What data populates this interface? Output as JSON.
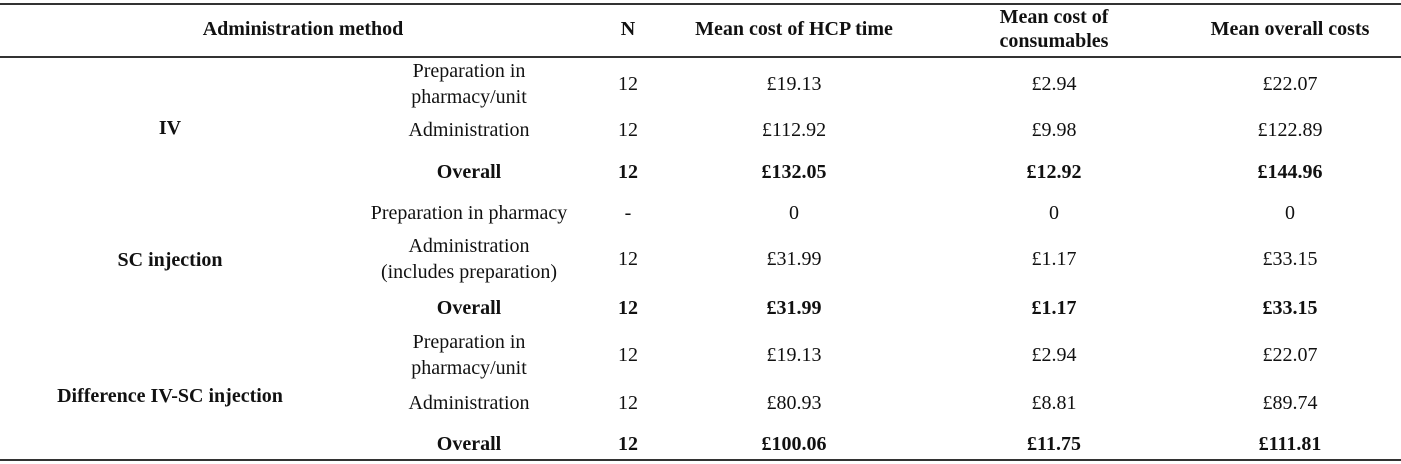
{
  "headers": {
    "method": "Administration method",
    "n": "N",
    "hcp": "Mean cost of HCP time",
    "consumables_line1": "Mean cost of",
    "consumables_line2": "consumables",
    "overall": "Mean overall costs"
  },
  "groups": [
    {
      "name": "IV",
      "rows": [
        {
          "label_line1": "Preparation in",
          "label_line2": "pharmacy/unit",
          "n": "12",
          "hcp": "£19.13",
          "consumables": "£2.94",
          "overall": "£22.07"
        },
        {
          "label_line1": "Administration",
          "label_line2": "",
          "n": "12",
          "hcp": "£112.92",
          "consumables": "£9.98",
          "overall": "£122.89"
        },
        {
          "label_line1": "Overall",
          "label_line2": "",
          "n": "12",
          "hcp": "£132.05",
          "consumables": "£12.92",
          "overall": "£144.96"
        }
      ]
    },
    {
      "name": "SC injection",
      "rows": [
        {
          "label_line1": "Preparation in pharmacy",
          "label_line2": "",
          "n": "-",
          "hcp": "0",
          "consumables": "0",
          "overall": "0"
        },
        {
          "label_line1": "Administration",
          "label_line2": "(includes preparation)",
          "n": "12",
          "hcp": "£31.99",
          "consumables": "£1.17",
          "overall": "£33.15"
        },
        {
          "label_line1": "Overall",
          "label_line2": "",
          "n": "12",
          "hcp": "£31.99",
          "consumables": "£1.17",
          "overall": "£33.15"
        }
      ]
    },
    {
      "name": "Difference IV-SC injection",
      "rows": [
        {
          "label_line1": "Preparation in",
          "label_line2": "pharmacy/unit",
          "n": "12",
          "hcp": "£19.13",
          "consumables": "£2.94",
          "overall": "£22.07"
        },
        {
          "label_line1": "Administration",
          "label_line2": "",
          "n": "12",
          "hcp": "£80.93",
          "consumables": "£8.81",
          "overall": "£89.74"
        },
        {
          "label_line1": "Overall",
          "label_line2": "",
          "n": "12",
          "hcp": "£100.06",
          "consumables": "£11.75",
          "overall": "£111.81"
        }
      ]
    }
  ]
}
